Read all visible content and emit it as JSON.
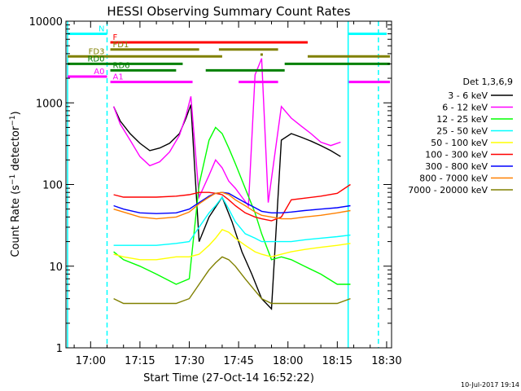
{
  "chart_data": {
    "type": "line",
    "title": "HESSI Observing Summary Count Rates",
    "xlabel": "Start Time (27-Oct-14 16:52:22)",
    "ylabel_main": "Count Rate (s",
    "ylabel_sup": "−1",
    "ylabel_mid": " detector",
    "ylabel_end": ")",
    "x_unit": "minutes after 17:00 UT",
    "xlim": [
      -7.5,
      91.5
    ],
    "ylim": [
      1,
      10000
    ],
    "ylog": true,
    "x_ticks": [
      {
        "value": 0,
        "label": "17:00"
      },
      {
        "value": 15,
        "label": "17:15"
      },
      {
        "value": 30,
        "label": "17:30"
      },
      {
        "value": 45,
        "label": "17:45"
      },
      {
        "value": 60,
        "label": "18:00"
      },
      {
        "value": 75,
        "label": "18:15"
      },
      {
        "value": 90,
        "label": "18:30"
      }
    ],
    "y_ticks": [
      {
        "value": 1,
        "label": "1"
      },
      {
        "value": 10,
        "label": "10"
      },
      {
        "value": 100,
        "label": "100"
      },
      {
        "value": 1000,
        "label": "1000"
      },
      {
        "value": 10000,
        "label": "10000"
      }
    ],
    "legend_title": "Det 1,3,6,9",
    "legend_position": "right",
    "series": [
      {
        "name": "3 - 6 keV",
        "color": "#000000",
        "x": [
          7,
          9,
          12,
          15,
          18,
          21,
          24,
          27,
          29,
          30.5,
          33,
          36,
          40,
          43,
          46,
          49,
          52,
          55,
          58,
          61,
          64,
          67,
          70,
          73,
          76
        ],
        "y": [
          900,
          600,
          420,
          320,
          260,
          280,
          320,
          420,
          650,
          950,
          20,
          40,
          70,
          35,
          15,
          8,
          4,
          3,
          350,
          420,
          380,
          340,
          300,
          260,
          220
        ]
      },
      {
        "name": "6 - 12 keV",
        "color": "#ff00ff",
        "x": [
          7,
          9,
          12,
          15,
          18,
          21,
          24,
          27,
          29,
          30.5,
          33,
          36,
          38,
          40,
          42,
          44,
          46,
          48,
          50,
          52,
          54,
          58,
          61,
          64,
          67,
          70,
          73,
          76
        ],
        "y": [
          900,
          550,
          350,
          220,
          170,
          190,
          250,
          400,
          700,
          1200,
          70,
          130,
          200,
          160,
          110,
          90,
          70,
          55,
          2200,
          3500,
          60,
          900,
          650,
          520,
          420,
          330,
          300,
          330
        ]
      },
      {
        "name": "12 - 25 keV",
        "color": "#00ff00",
        "x": [
          7,
          10,
          15,
          20,
          26,
          30,
          33,
          36,
          38,
          40,
          42,
          44,
          47,
          50,
          52,
          55,
          58,
          61,
          65,
          70,
          75,
          79
        ],
        "y": [
          15,
          12,
          10,
          8,
          6,
          7,
          100,
          350,
          500,
          420,
          280,
          180,
          90,
          45,
          25,
          12,
          13,
          12,
          10,
          8,
          6,
          6
        ]
      },
      {
        "name": "25 - 50 keV",
        "color": "#00ffff",
        "x": [
          7,
          10,
          15,
          20,
          26,
          30,
          33,
          36,
          38,
          40,
          42,
          44,
          47,
          50,
          52,
          55,
          58,
          61,
          65,
          70,
          75,
          79
        ],
        "y": [
          18,
          18,
          18,
          18,
          19,
          20,
          30,
          45,
          55,
          70,
          50,
          35,
          25,
          22,
          20,
          20,
          20,
          20,
          21,
          22,
          23,
          24
        ]
      },
      {
        "name": "50 - 100 keV",
        "color": "#ffff00",
        "x": [
          7,
          10,
          15,
          20,
          26,
          30,
          33,
          36,
          38,
          40,
          42,
          44,
          47,
          50,
          52,
          55,
          58,
          61,
          65,
          70,
          75,
          79
        ],
        "y": [
          14,
          13,
          12,
          12,
          13,
          13,
          14,
          18,
          22,
          28,
          26,
          22,
          18,
          15,
          14,
          13,
          14,
          15,
          16,
          17,
          18,
          19
        ]
      },
      {
        "name": "100 - 300 keV",
        "color": "#ff0000",
        "x": [
          7,
          10,
          15,
          20,
          26,
          30,
          33,
          36,
          38,
          40,
          42,
          44,
          47,
          50,
          52,
          55,
          58,
          61,
          65,
          70,
          75,
          79
        ],
        "y": [
          75,
          70,
          70,
          70,
          72,
          75,
          80,
          80,
          78,
          75,
          65,
          55,
          45,
          40,
          38,
          36,
          40,
          65,
          68,
          72,
          78,
          100
        ]
      },
      {
        "name": "300 - 800 keV",
        "color": "#0000ff",
        "x": [
          7,
          10,
          15,
          20,
          26,
          30,
          33,
          36,
          38,
          40,
          42,
          44,
          47,
          50,
          52,
          55,
          58,
          61,
          65,
          70,
          75,
          79
        ],
        "y": [
          55,
          50,
          45,
          44,
          45,
          50,
          60,
          72,
          78,
          80,
          78,
          70,
          60,
          52,
          47,
          45,
          45,
          46,
          48,
          50,
          52,
          55
        ]
      },
      {
        "name": "800 - 7000 keV",
        "color": "#ff8000",
        "x": [
          7,
          10,
          15,
          20,
          26,
          30,
          33,
          36,
          38,
          40,
          42,
          44,
          47,
          50,
          52,
          55,
          58,
          61,
          65,
          70,
          75,
          79
        ],
        "y": [
          50,
          46,
          40,
          38,
          40,
          46,
          58,
          70,
          78,
          80,
          75,
          65,
          55,
          46,
          42,
          40,
          38,
          38,
          40,
          42,
          45,
          48
        ]
      },
      {
        "name": "7000 - 20000 keV",
        "color": "#808000",
        "x": [
          7,
          10,
          15,
          20,
          26,
          30,
          33,
          36,
          38,
          40,
          42,
          44,
          47,
          50,
          52,
          55,
          58,
          61,
          65,
          70,
          75,
          79
        ],
        "y": [
          4,
          3.5,
          3.5,
          3.5,
          3.5,
          4,
          6,
          9,
          11,
          13,
          12,
          10,
          7,
          5,
          4,
          3.5,
          3.5,
          3.5,
          3.5,
          3.5,
          3.5,
          4
        ]
      }
    ],
    "flags": [
      {
        "label": "N",
        "color": "#00ffff",
        "y": 7000,
        "segments": [
          [
            -7,
            5
          ],
          [
            78.5,
            90
          ]
        ]
      },
      {
        "label": "F",
        "color": "#ff0000",
        "y": 5500,
        "segments": [
          [
            6,
            66
          ]
        ]
      },
      {
        "label": "FD1",
        "color": "#808000",
        "y": 4500,
        "segments": [
          [
            6,
            33
          ],
          [
            39,
            57
          ]
        ],
        "dots": [
          [
            52,
            3900
          ]
        ]
      },
      {
        "label": "FD3",
        "color": "#808000",
        "y": 3700,
        "segments": [
          [
            -7,
            40
          ],
          [
            66,
            91
          ]
        ]
      },
      {
        "label": "RD0",
        "color": "#008000",
        "y": 3000,
        "segments": [
          [
            -7,
            28
          ],
          [
            59,
            91
          ]
        ]
      },
      {
        "label": "RD6",
        "color": "#008000",
        "y": 2500,
        "segments": [
          [
            6,
            26
          ],
          [
            35,
            59
          ]
        ]
      },
      {
        "label": "A0",
        "color": "#ff00ff",
        "y": 2100,
        "segments": [
          [
            -7,
            5
          ]
        ]
      },
      {
        "label": "A1",
        "color": "#ff00ff",
        "y": 1800,
        "segments": [
          [
            6,
            31
          ],
          [
            45,
            57
          ],
          [
            78.5,
            91
          ]
        ]
      }
    ],
    "boundaries": [
      {
        "x": 5,
        "color": "#00ffff",
        "style": "dashed"
      },
      {
        "x": 78.3,
        "color": "#00ffff",
        "style": "solid"
      },
      {
        "x": 87.5,
        "color": "#00ffff",
        "style": "dashed"
      },
      {
        "x": -7,
        "color": "#00ffff",
        "style": "solid"
      }
    ]
  },
  "footer": {
    "date_stamp": "10-Jul-2017 19:14"
  }
}
